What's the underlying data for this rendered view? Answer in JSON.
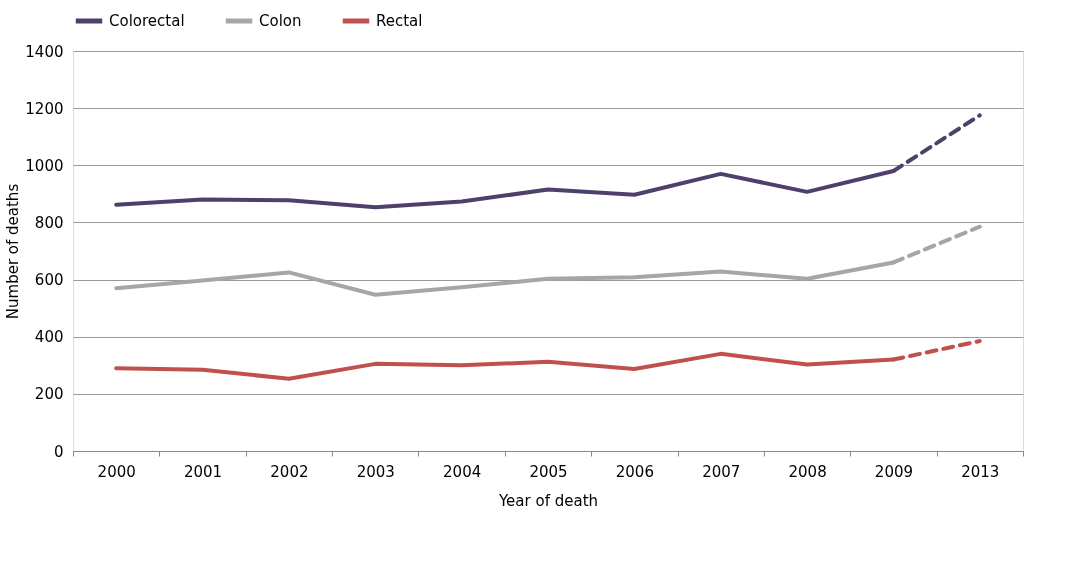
{
  "chart_data": {
    "type": "line",
    "xlabel": "Year of death",
    "ylabel": "Number of deaths",
    "categories": [
      "2000",
      "2001",
      "2002",
      "2003",
      "2004",
      "2005",
      "2006",
      "2007",
      "2008",
      "2009",
      "2013"
    ],
    "series": [
      {
        "name": "Colorectal",
        "color": "#4f3f6b",
        "line_style": "solid",
        "values": [
          862,
          880,
          878,
          853,
          873,
          915,
          897,
          970,
          907,
          980,
          null
        ]
      },
      {
        "name": "Colon",
        "color": "#a6a6a6",
        "line_style": "solid",
        "values": [
          570,
          597,
          625,
          547,
          573,
          603,
          608,
          628,
          603,
          660,
          null
        ]
      },
      {
        "name": "Rectal",
        "color": "#c0504d",
        "line_style": "solid",
        "values": [
          290,
          284,
          253,
          305,
          300,
          312,
          287,
          340,
          303,
          320,
          null
        ]
      },
      {
        "color": "#4f3f6b",
        "line_style": "dashed",
        "values": [
          null,
          null,
          null,
          null,
          null,
          null,
          null,
          null,
          null,
          980,
          1175
        ]
      },
      {
        "color": "#a6a6a6",
        "line_style": "dashed",
        "values": [
          null,
          null,
          null,
          null,
          null,
          null,
          null,
          null,
          null,
          660,
          785
        ]
      },
      {
        "color": "#c0504d",
        "line_style": "dashed",
        "values": [
          null,
          null,
          null,
          null,
          null,
          null,
          null,
          null,
          null,
          320,
          385
        ]
      }
    ],
    "ylim": [
      0,
      1400
    ],
    "yticks": [
      0,
      200,
      400,
      600,
      800,
      1000,
      1200,
      1400
    ],
    "grid": "y",
    "legend": "top left",
    "marker": "none"
  }
}
